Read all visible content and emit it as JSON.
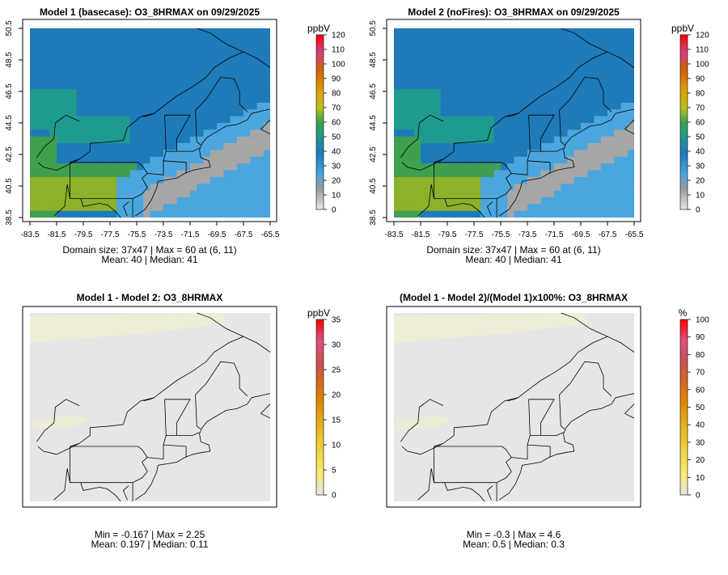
{
  "panels": [
    {
      "title": "Model 1 (basecase): O3_8HRMAX on 09/29/2025",
      "stats_line1": "Domain size: 37x47 | Max = 60 at (6, 11)",
      "stats_line2": "Mean: 40 |  Median: 41",
      "colorbar_unit": "ppbV",
      "colorbar_ticks": [
        "0",
        "10",
        "20",
        "30",
        "40",
        "50",
        "60",
        "70",
        "80",
        "90",
        "100",
        "110",
        "120"
      ]
    },
    {
      "title": "Model 2 (noFires): O3_8HRMAX on 09/29/2025",
      "stats_line1": "Domain size: 37x47 | Max = 60 at (6, 11)",
      "stats_line2": "Mean: 40 |  Median: 41",
      "colorbar_unit": "ppbV",
      "colorbar_ticks": [
        "0",
        "10",
        "20",
        "30",
        "40",
        "50",
        "60",
        "70",
        "80",
        "90",
        "100",
        "110",
        "120"
      ]
    },
    {
      "title": "Model 1 - Model 2: O3_8HRMAX",
      "stats_line1": "Min = -0.167 | Max = 2.25",
      "stats_line2": "Mean: 0.197 |  Median: 0.11",
      "colorbar_unit": "ppbV",
      "colorbar_ticks": [
        "0",
        "5",
        "10",
        "15",
        "20",
        "25",
        "30",
        "35"
      ]
    },
    {
      "title": "(Model 1 - Model 2)/(Model 1)x100%: O3_8HRMAX",
      "stats_line1": "Min = -0.3 | Max = 4.6",
      "stats_line2": "Mean: 0.5 |  Median: 0.3",
      "colorbar_unit": "%",
      "colorbar_ticks": [
        "0",
        "10",
        "20",
        "30",
        "40",
        "50",
        "60",
        "70",
        "80",
        "90",
        "100"
      ]
    }
  ],
  "axis": {
    "lon_ticks": [
      "-83.5",
      "-81.5",
      "-79.5",
      "-77.5",
      "-75.5",
      "-73.5",
      "-71.5",
      "-69.5",
      "-67.5",
      "-65.5"
    ],
    "lat_ticks": [
      "38.5",
      "40.5",
      "42.5",
      "44.5",
      "46.5",
      "48.5",
      "50.5"
    ]
  },
  "colors": {
    "ocean_blue": "#1f7ab8",
    "light_blue": "#4ba6dd",
    "gray_band": "#a6a6a6",
    "teal": "#1f9a8e",
    "green": "#3ea04e",
    "yellow_green": "#8cb12a",
    "diff_background": "#e6e6e6"
  }
}
